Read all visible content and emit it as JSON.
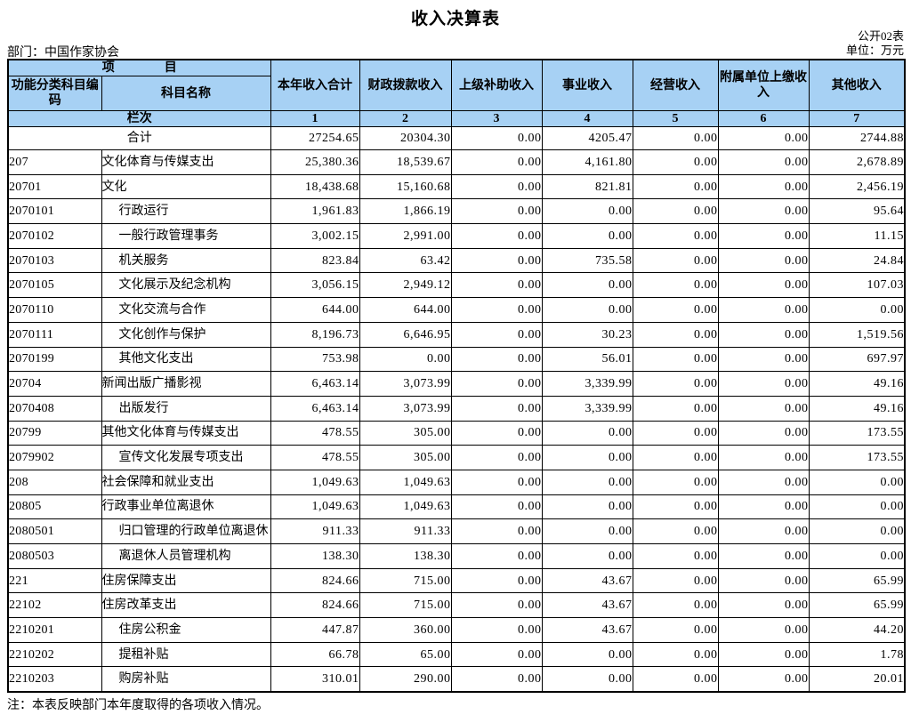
{
  "page": {
    "title": "收入决算表",
    "table_code": "公开02表",
    "unit": "单位：万元",
    "department": "部门：中国作家协会",
    "note": "注：本表反映部门本年度取得的各项收入情况。"
  },
  "colors": {
    "header_blue": "#a7d1f4",
    "border": "#000000",
    "background": "#ffffff"
  },
  "table": {
    "headers": {
      "project_group": "项　　　　目",
      "code": "功能分类科目编码",
      "subject_name": "科目名称",
      "columns": [
        "本年收入合计",
        "财政拨款收入",
        "上级补助收入",
        "事业收入",
        "经营收入",
        "附属单位上缴收入",
        "其他收入"
      ],
      "lanci_label": "栏次",
      "lanci_numbers": [
        "1",
        "2",
        "3",
        "4",
        "5",
        "6",
        "7"
      ]
    },
    "total_row": {
      "label": "合计",
      "values": [
        "27254.65",
        "20304.30",
        "0.00",
        "4205.47",
        "0.00",
        "0.00",
        "2744.88"
      ]
    },
    "rows": [
      {
        "code": "207",
        "name": "文化体育与传媒支出",
        "indent": 0,
        "values": [
          "25,380.36",
          "18,539.67",
          "0.00",
          "4,161.80",
          "0.00",
          "0.00",
          "2,678.89"
        ]
      },
      {
        "code": "20701",
        "name": "文化",
        "indent": 0,
        "values": [
          "18,438.68",
          "15,160.68",
          "0.00",
          "821.81",
          "0.00",
          "0.00",
          "2,456.19"
        ]
      },
      {
        "code": "2070101",
        "name": "行政运行",
        "indent": 1,
        "values": [
          "1,961.83",
          "1,866.19",
          "0.00",
          "0.00",
          "0.00",
          "0.00",
          "95.64"
        ]
      },
      {
        "code": "2070102",
        "name": "一般行政管理事务",
        "indent": 1,
        "values": [
          "3,002.15",
          "2,991.00",
          "0.00",
          "0.00",
          "0.00",
          "0.00",
          "11.15"
        ]
      },
      {
        "code": "2070103",
        "name": "机关服务",
        "indent": 1,
        "values": [
          "823.84",
          "63.42",
          "0.00",
          "735.58",
          "0.00",
          "0.00",
          "24.84"
        ]
      },
      {
        "code": "2070105",
        "name": "文化展示及纪念机构",
        "indent": 1,
        "values": [
          "3,056.15",
          "2,949.12",
          "0.00",
          "0.00",
          "0.00",
          "0.00",
          "107.03"
        ]
      },
      {
        "code": "2070110",
        "name": "文化交流与合作",
        "indent": 1,
        "values": [
          "644.00",
          "644.00",
          "0.00",
          "0.00",
          "0.00",
          "0.00",
          "0.00"
        ]
      },
      {
        "code": "2070111",
        "name": "文化创作与保护",
        "indent": 1,
        "values": [
          "8,196.73",
          "6,646.95",
          "0.00",
          "30.23",
          "0.00",
          "0.00",
          "1,519.56"
        ]
      },
      {
        "code": "2070199",
        "name": "其他文化支出",
        "indent": 1,
        "values": [
          "753.98",
          "0.00",
          "0.00",
          "56.01",
          "0.00",
          "0.00",
          "697.97"
        ]
      },
      {
        "code": "20704",
        "name": "新闻出版广播影视",
        "indent": 0,
        "values": [
          "6,463.14",
          "3,073.99",
          "0.00",
          "3,339.99",
          "0.00",
          "0.00",
          "49.16"
        ]
      },
      {
        "code": "2070408",
        "name": "出版发行",
        "indent": 1,
        "values": [
          "6,463.14",
          "3,073.99",
          "0.00",
          "3,339.99",
          "0.00",
          "0.00",
          "49.16"
        ]
      },
      {
        "code": "20799",
        "name": "其他文化体育与传媒支出",
        "indent": 0,
        "values": [
          "478.55",
          "305.00",
          "0.00",
          "0.00",
          "0.00",
          "0.00",
          "173.55"
        ]
      },
      {
        "code": "2079902",
        "name": "宣传文化发展专项支出",
        "indent": 1,
        "values": [
          "478.55",
          "305.00",
          "0.00",
          "0.00",
          "0.00",
          "0.00",
          "173.55"
        ]
      },
      {
        "code": "208",
        "name": "社会保障和就业支出",
        "indent": 0,
        "values": [
          "1,049.63",
          "1,049.63",
          "0.00",
          "0.00",
          "0.00",
          "0.00",
          "0.00"
        ]
      },
      {
        "code": "20805",
        "name": "行政事业单位离退休",
        "indent": 0,
        "values": [
          "1,049.63",
          "1,049.63",
          "0.00",
          "0.00",
          "0.00",
          "0.00",
          "0.00"
        ]
      },
      {
        "code": "2080501",
        "name": "归口管理的行政单位离退休",
        "indent": 1,
        "values": [
          "911.33",
          "911.33",
          "0.00",
          "0.00",
          "0.00",
          "0.00",
          "0.00"
        ]
      },
      {
        "code": "2080503",
        "name": "离退休人员管理机构",
        "indent": 1,
        "values": [
          "138.30",
          "138.30",
          "0.00",
          "0.00",
          "0.00",
          "0.00",
          "0.00"
        ]
      },
      {
        "code": "221",
        "name": "住房保障支出",
        "indent": 0,
        "values": [
          "824.66",
          "715.00",
          "0.00",
          "43.67",
          "0.00",
          "0.00",
          "65.99"
        ]
      },
      {
        "code": "22102",
        "name": "住房改革支出",
        "indent": 0,
        "values": [
          "824.66",
          "715.00",
          "0.00",
          "43.67",
          "0.00",
          "0.00",
          "65.99"
        ]
      },
      {
        "code": "2210201",
        "name": "住房公积金",
        "indent": 1,
        "values": [
          "447.87",
          "360.00",
          "0.00",
          "43.67",
          "0.00",
          "0.00",
          "44.20"
        ]
      },
      {
        "code": "2210202",
        "name": "提租补贴",
        "indent": 1,
        "values": [
          "66.78",
          "65.00",
          "0.00",
          "0.00",
          "0.00",
          "0.00",
          "1.78"
        ]
      },
      {
        "code": "2210203",
        "name": "购房补贴",
        "indent": 1,
        "values": [
          "310.01",
          "290.00",
          "0.00",
          "0.00",
          "0.00",
          "0.00",
          "20.01"
        ]
      }
    ]
  }
}
